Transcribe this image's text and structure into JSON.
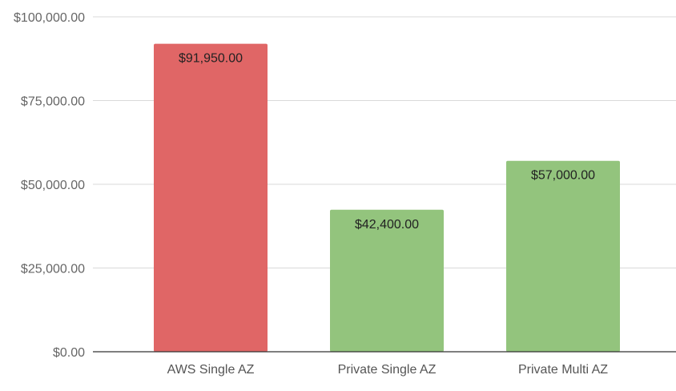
{
  "chart_data": {
    "type": "bar",
    "categories": [
      "AWS Single AZ",
      "Private Single AZ",
      "Private Multi AZ"
    ],
    "values": [
      91950,
      42400,
      57000
    ],
    "data_labels": [
      "$91,950.00",
      "$42,400.00",
      "$57,000.00"
    ],
    "bar_colors": [
      "#e06666",
      "#93c47d",
      "#93c47d"
    ],
    "y_ticks": [
      0,
      25000,
      50000,
      75000,
      100000
    ],
    "y_tick_labels": [
      "$0.00",
      "$25,000.00",
      "$50,000.00",
      "$75,000.00",
      "$100,000.00"
    ],
    "ylim": [
      0,
      100000
    ],
    "grid": true,
    "legend": "none",
    "title": "",
    "xlabel": "",
    "ylabel": ""
  }
}
